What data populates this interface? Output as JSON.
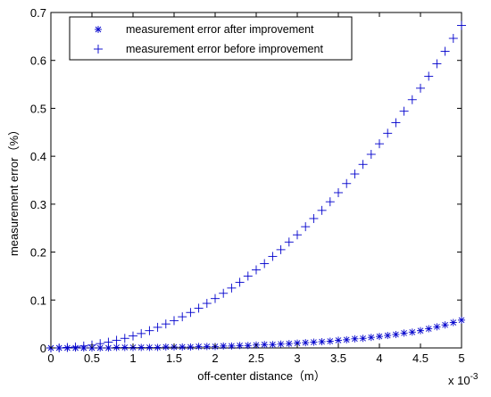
{
  "chart_data": {
    "type": "scatter",
    "xlabel": "off-center distance（m）",
    "ylabel": "measurement error（%）",
    "x_multiplier_label": "x 10",
    "x_multiplier_exponent": "-3",
    "xlim": [
      0,
      5
    ],
    "ylim": [
      0,
      0.7
    ],
    "x_ticks": [
      0,
      0.5,
      1,
      1.5,
      2,
      2.5,
      3,
      3.5,
      4,
      4.5,
      5
    ],
    "x_tick_labels": [
      "0",
      "0.5",
      "1",
      "1.5",
      "2",
      "2.5",
      "3",
      "3.5",
      "4",
      "4.5",
      "5"
    ],
    "y_ticks": [
      0,
      0.1,
      0.2,
      0.3,
      0.4,
      0.5,
      0.6,
      0.7
    ],
    "y_tick_labels": [
      "0",
      "0.1",
      "0.2",
      "0.3",
      "0.4",
      "0.5",
      "0.6",
      "0.7"
    ],
    "grid": false,
    "legend_position": "top-center",
    "series": [
      {
        "name": "measurement error after improvement",
        "color": "#0000cc",
        "marker": "star",
        "x": [
          0,
          0.1,
          0.2,
          0.3,
          0.4,
          0.5,
          0.6,
          0.7,
          0.8,
          0.9,
          1.0,
          1.1,
          1.2,
          1.3,
          1.4,
          1.5,
          1.6,
          1.7,
          1.8,
          1.9,
          2.0,
          2.1,
          2.2,
          2.3,
          2.4,
          2.5,
          2.6,
          2.7,
          2.8,
          2.9,
          3.0,
          3.1,
          3.2,
          3.3,
          3.4,
          3.5,
          3.6,
          3.7,
          3.8,
          3.9,
          4.0,
          4.1,
          4.2,
          4.3,
          4.4,
          4.5,
          4.6,
          4.7,
          4.8,
          4.9,
          5.0
        ],
        "y": [
          0.0,
          0.0,
          0.0,
          0.0,
          0.0,
          0.0,
          0.0,
          0.0,
          0.001,
          0.001,
          0.001,
          0.001,
          0.001,
          0.001,
          0.002,
          0.002,
          0.002,
          0.002,
          0.003,
          0.003,
          0.003,
          0.004,
          0.004,
          0.005,
          0.005,
          0.006,
          0.007,
          0.007,
          0.008,
          0.009,
          0.01,
          0.011,
          0.012,
          0.013,
          0.014,
          0.016,
          0.017,
          0.019,
          0.02,
          0.022,
          0.024,
          0.026,
          0.028,
          0.031,
          0.033,
          0.036,
          0.04,
          0.044,
          0.048,
          0.053,
          0.058
        ]
      },
      {
        "name": "measurement error before improvement",
        "color": "#0000cc",
        "marker": "plus",
        "x": [
          0,
          0.1,
          0.2,
          0.3,
          0.4,
          0.5,
          0.6,
          0.7,
          0.8,
          0.9,
          1.0,
          1.1,
          1.2,
          1.3,
          1.4,
          1.5,
          1.6,
          1.7,
          1.8,
          1.9,
          2.0,
          2.1,
          2.2,
          2.3,
          2.4,
          2.5,
          2.6,
          2.7,
          2.8,
          2.9,
          3.0,
          3.1,
          3.2,
          3.3,
          3.4,
          3.5,
          3.6,
          3.7,
          3.8,
          3.9,
          4.0,
          4.1,
          4.2,
          4.3,
          4.4,
          4.5,
          4.6,
          4.7,
          4.8,
          4.9,
          5.0
        ],
        "y": [
          0.0,
          0.0,
          0.001,
          0.002,
          0.004,
          0.006,
          0.009,
          0.012,
          0.016,
          0.02,
          0.025,
          0.03,
          0.036,
          0.043,
          0.05,
          0.057,
          0.065,
          0.074,
          0.083,
          0.093,
          0.103,
          0.114,
          0.125,
          0.137,
          0.15,
          0.163,
          0.176,
          0.191,
          0.205,
          0.221,
          0.236,
          0.253,
          0.27,
          0.287,
          0.305,
          0.324,
          0.343,
          0.363,
          0.383,
          0.404,
          0.426,
          0.448,
          0.47,
          0.494,
          0.518,
          0.542,
          0.567,
          0.593,
          0.619,
          0.646,
          0.673
        ]
      }
    ]
  }
}
